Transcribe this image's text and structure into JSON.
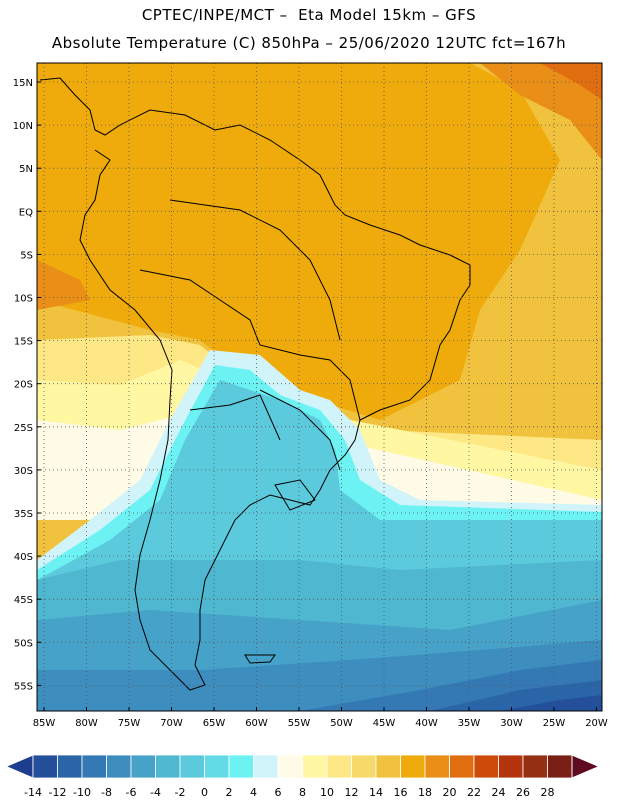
{
  "header": {
    "title_line1": "CPTEC/INPE/MCT –  Eta Model 15km – GFS",
    "title_line2": "Absolute Temperature (C) 850hPa – 25/06/2020 12UTC fct=167h"
  },
  "map": {
    "lat_labels": [
      "15N",
      "10N",
      "5N",
      "EQ",
      "5S",
      "10S",
      "15S",
      "20S",
      "25S",
      "30S",
      "35S",
      "40S",
      "45S",
      "50S",
      "55S"
    ],
    "lon_labels": [
      "85W",
      "80W",
      "75W",
      "70W",
      "65W",
      "60W",
      "55W",
      "50W",
      "45W",
      "40W",
      "35W",
      "30W",
      "25W",
      "20W"
    ]
  },
  "colorbar": {
    "labels": [
      "-14",
      "-12",
      "-10",
      "-8",
      "-6",
      "-4",
      "-2",
      "0",
      "2",
      "4",
      "6",
      "8",
      "10",
      "12",
      "14",
      "16",
      "18",
      "20",
      "22",
      "24",
      "26",
      "28"
    ],
    "colors": [
      "#1e3d8f",
      "#24509b",
      "#2a65a8",
      "#3479b4",
      "#3d8dbf",
      "#46a2c8",
      "#4fb7d0",
      "#5bcadc",
      "#62dbe6",
      "#6cf2f2",
      "#d0f4fa",
      "#fffbe6",
      "#fff7a2",
      "#fde885",
      "#f6d968",
      "#f1c23e",
      "#efaa0c",
      "#e98e16",
      "#e06d10",
      "#cc4b0b",
      "#b4350d",
      "#953014",
      "#7a1f16",
      "#600a20"
    ]
  }
}
